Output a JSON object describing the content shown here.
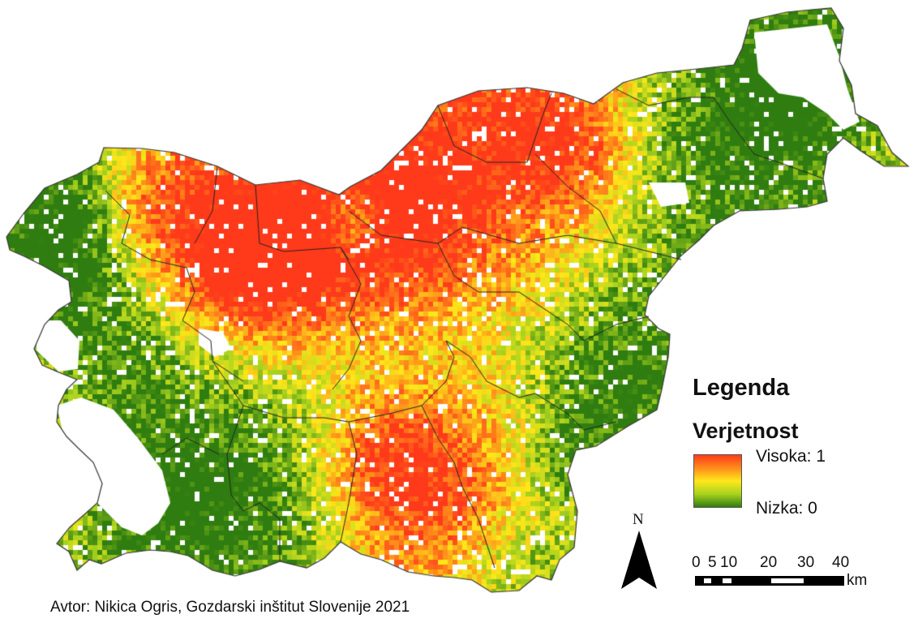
{
  "legend": {
    "title": "Legenda",
    "subtitle": "Verjetnost",
    "high_label": "Visoka: 1",
    "low_label": "Nizka: 0",
    "colors": [
      "#ff3a1a",
      "#ff8c1a",
      "#ffe81a",
      "#a9d21e",
      "#2f7d10"
    ]
  },
  "north_arrow": {
    "label": "N"
  },
  "scale_bar": {
    "ticks": [
      "0",
      "5",
      "10",
      "20",
      "30",
      "40"
    ],
    "unit": "km"
  },
  "credit": "Avtor: Nikica Ogris, Gozdarski inštitut Slovenije 2021"
}
